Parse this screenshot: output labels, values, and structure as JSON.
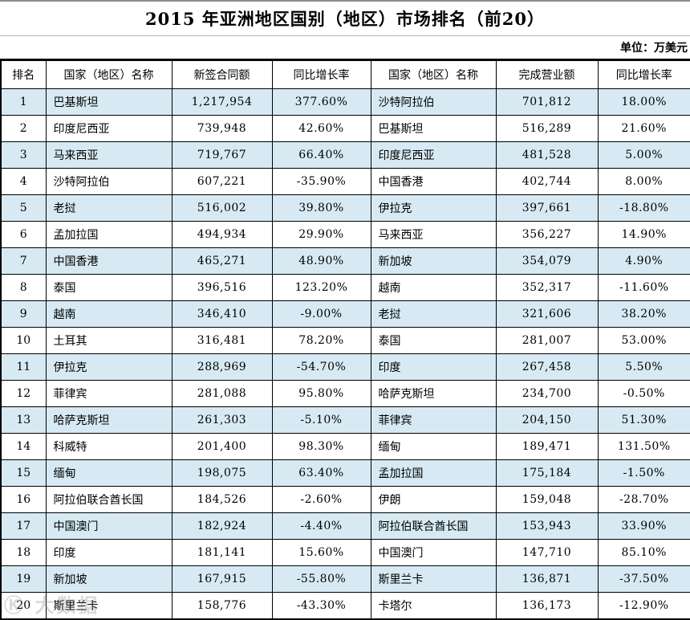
{
  "title": "2015 年亚洲地区国别（地区）市场排名（前20）",
  "unit_label": "单位：万美元",
  "watermark": "Ⓚ 大数据",
  "colors": {
    "stripe_blue": "#d7eaf3",
    "grid_border": "#000000",
    "title_divider": "#b5b5b5"
  },
  "table": {
    "headers": [
      "排名",
      "国家（地区）名称",
      "新签合同额",
      "同比增长率",
      "国家（地区）名称",
      "完成营业额",
      "同比增长率"
    ],
    "rows": [
      {
        "rank": "1",
        "contract_country": "巴基斯坦",
        "contract_value": "1,217,954",
        "contract_growth": "377.60%",
        "turnover_country": "沙特阿拉伯",
        "turnover_value": "701,812",
        "turnover_growth": "18.00%"
      },
      {
        "rank": "2",
        "contract_country": "印度尼西亚",
        "contract_value": "739,948",
        "contract_growth": "42.60%",
        "turnover_country": "巴基斯坦",
        "turnover_value": "516,289",
        "turnover_growth": "21.60%"
      },
      {
        "rank": "3",
        "contract_country": "马来西亚",
        "contract_value": "719,767",
        "contract_growth": "66.40%",
        "turnover_country": "印度尼西亚",
        "turnover_value": "481,528",
        "turnover_growth": "5.00%"
      },
      {
        "rank": "4",
        "contract_country": "沙特阿拉伯",
        "contract_value": "607,221",
        "contract_growth": "-35.90%",
        "turnover_country": "中国香港",
        "turnover_value": "402,744",
        "turnover_growth": "8.00%"
      },
      {
        "rank": "5",
        "contract_country": "老挝",
        "contract_value": "516,002",
        "contract_growth": "39.80%",
        "turnover_country": "伊拉克",
        "turnover_value": "397,661",
        "turnover_growth": "-18.80%"
      },
      {
        "rank": "6",
        "contract_country": "孟加拉国",
        "contract_value": "494,934",
        "contract_growth": "29.90%",
        "turnover_country": "马来西亚",
        "turnover_value": "356,227",
        "turnover_growth": "14.90%"
      },
      {
        "rank": "7",
        "contract_country": "中国香港",
        "contract_value": "465,271",
        "contract_growth": "48.90%",
        "turnover_country": "新加坡",
        "turnover_value": "354,079",
        "turnover_growth": "4.90%"
      },
      {
        "rank": "8",
        "contract_country": "泰国",
        "contract_value": "396,516",
        "contract_growth": "123.20%",
        "turnover_country": "越南",
        "turnover_value": "352,317",
        "turnover_growth": "-11.60%"
      },
      {
        "rank": "9",
        "contract_country": "越南",
        "contract_value": "346,410",
        "contract_growth": "-9.00%",
        "turnover_country": "老挝",
        "turnover_value": "321,606",
        "turnover_growth": "38.20%"
      },
      {
        "rank": "10",
        "contract_country": "土耳其",
        "contract_value": "316,481",
        "contract_growth": "78.20%",
        "turnover_country": "泰国",
        "turnover_value": "281,007",
        "turnover_growth": "53.00%"
      },
      {
        "rank": "11",
        "contract_country": "伊拉克",
        "contract_value": "288,969",
        "contract_growth": "-54.70%",
        "turnover_country": "印度",
        "turnover_value": "267,458",
        "turnover_growth": "5.50%"
      },
      {
        "rank": "12",
        "contract_country": "菲律宾",
        "contract_value": "281,088",
        "contract_growth": "95.80%",
        "turnover_country": "哈萨克斯坦",
        "turnover_value": "234,700",
        "turnover_growth": "-0.50%"
      },
      {
        "rank": "13",
        "contract_country": "哈萨克斯坦",
        "contract_value": "261,303",
        "contract_growth": "-5.10%",
        "turnover_country": "菲律宾",
        "turnover_value": "204,150",
        "turnover_growth": "51.30%"
      },
      {
        "rank": "14",
        "contract_country": "科威特",
        "contract_value": "201,400",
        "contract_growth": "98.30%",
        "turnover_country": "缅甸",
        "turnover_value": "189,471",
        "turnover_growth": "131.50%"
      },
      {
        "rank": "15",
        "contract_country": "缅甸",
        "contract_value": "198,075",
        "contract_growth": "63.40%",
        "turnover_country": "孟加拉国",
        "turnover_value": "175,184",
        "turnover_growth": "-1.50%"
      },
      {
        "rank": "16",
        "contract_country": "阿拉伯联合酋长国",
        "contract_value": "184,526",
        "contract_growth": "-2.60%",
        "turnover_country": "伊朗",
        "turnover_value": "159,048",
        "turnover_growth": "-28.70%"
      },
      {
        "rank": "17",
        "contract_country": "中国澳门",
        "contract_value": "182,924",
        "contract_growth": "-4.40%",
        "turnover_country": "阿拉伯联合酋长国",
        "turnover_value": "153,943",
        "turnover_growth": "33.90%"
      },
      {
        "rank": "18",
        "contract_country": "印度",
        "contract_value": "181,141",
        "contract_growth": "15.60%",
        "turnover_country": "中国澳门",
        "turnover_value": "147,710",
        "turnover_growth": "85.10%"
      },
      {
        "rank": "19",
        "contract_country": "新加坡",
        "contract_value": "167,915",
        "contract_growth": "-55.80%",
        "turnover_country": "斯里兰卡",
        "turnover_value": "136,871",
        "turnover_growth": "-37.50%"
      },
      {
        "rank": "20",
        "contract_country": "斯里兰卡",
        "contract_value": "158,776",
        "contract_growth": "-43.30%",
        "turnover_country": "卡塔尔",
        "turnover_value": "136,173",
        "turnover_growth": "-12.90%"
      }
    ]
  }
}
